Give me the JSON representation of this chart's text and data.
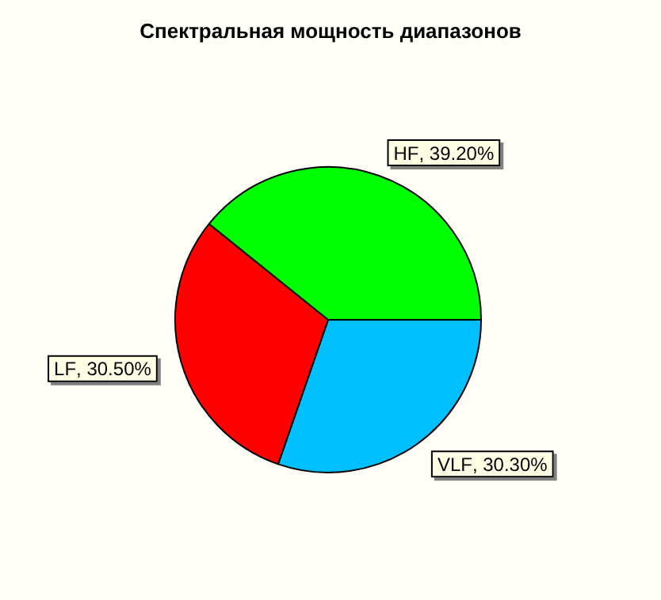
{
  "chart_data": {
    "type": "pie",
    "title": "Спектральная мощность диапазонов",
    "categories": [
      "VLF",
      "LF",
      "HF"
    ],
    "values": [
      30.3,
      30.5,
      39.2
    ],
    "colors": [
      "#00bfff",
      "#ff0000",
      "#00ff00"
    ],
    "value_labels": [
      ", 30.30%",
      ", 30.50%",
      ", 39.20%"
    ],
    "legend": false
  }
}
